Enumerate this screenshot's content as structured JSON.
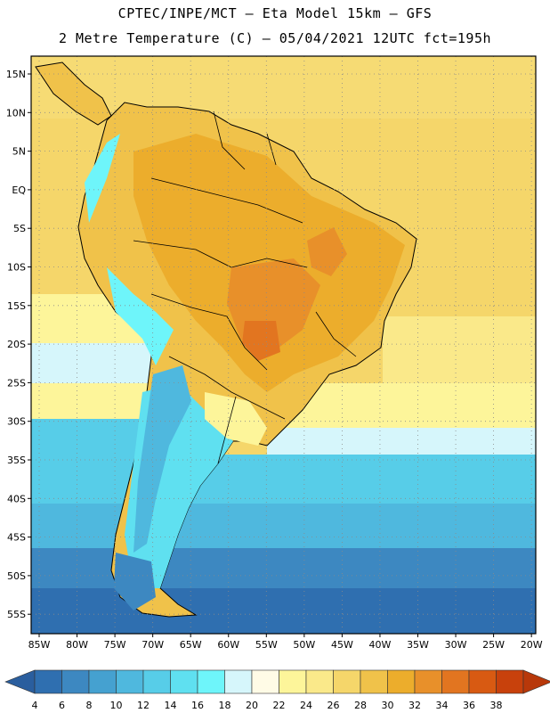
{
  "header": {
    "line1": "CPTEC/INPE/MCT –  Eta Model 15km – GFS",
    "line2": "2 Metre Temperature (C) – 05/04/2021 12UTC fct=195h"
  },
  "axes": {
    "lat_labels": [
      "15N",
      "10N",
      "5N",
      "EQ",
      "5S",
      "10S",
      "15S",
      "20S",
      "25S",
      "30S",
      "35S",
      "40S",
      "45S",
      "50S",
      "55S"
    ],
    "lon_labels": [
      "85W",
      "80W",
      "75W",
      "70W",
      "65W",
      "60W",
      "55W",
      "50W",
      "45W",
      "40W",
      "35W",
      "30W",
      "25W",
      "20W"
    ]
  },
  "colorbar": {
    "labels": [
      "4",
      "6",
      "8",
      "10",
      "12",
      "14",
      "16",
      "18",
      "20",
      "22",
      "24",
      "26",
      "28",
      "30",
      "32",
      "34",
      "36",
      "38"
    ],
    "colors": [
      "#2f6fb0",
      "#3d88c1",
      "#45a1d0",
      "#4fb8de",
      "#57cde8",
      "#5fe0f0",
      "#6ef5fa",
      "#d6f6fb",
      "#fffbe6",
      "#fdf59a",
      "#fae98a",
      "#f5d66a",
      "#f0c24a",
      "#ecad2c",
      "#e8902a",
      "#e27520",
      "#d85a12",
      "#c8410c"
    ],
    "under_color": "#2a5e9e",
    "over_color": "#b8380a"
  }
}
